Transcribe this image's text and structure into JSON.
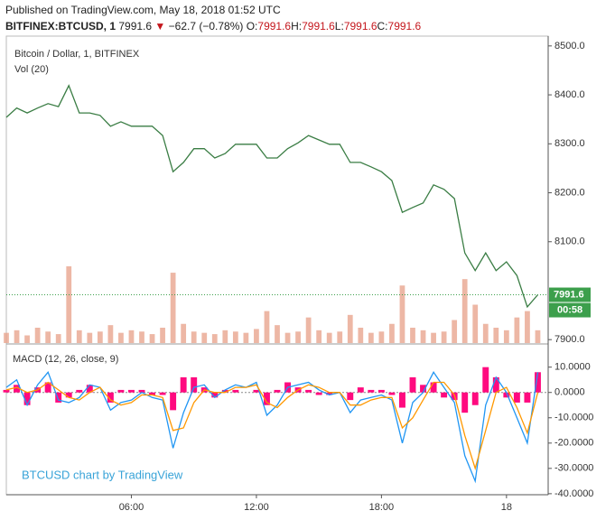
{
  "header": {
    "published": "Published on TradingView.com, May 18, 2018 01:52 UTC",
    "symbol": "BITFINEX:BTCUSD, 1",
    "last": "7991.6",
    "change": "−62.7 (−0.78%)",
    "ohlc": [
      {
        "label": "O:",
        "value": "7991.6"
      },
      {
        "label": "H:",
        "value": "7991.6"
      },
      {
        "label": "L:",
        "value": "7991.6"
      },
      {
        "label": "C:",
        "value": "7991.6"
      }
    ]
  },
  "watermark": "BTCUSD chart by TradingView",
  "chart_data": [
    {
      "type": "line",
      "title": "Bitcoin / Dollar, 1, BITFINEX",
      "subtitle": "Vol (20)",
      "countdown": "00:58",
      "x": [
        0,
        0.5,
        1,
        1.5,
        2,
        2.5,
        3,
        3.5,
        4,
        4.5,
        5,
        5.5,
        6,
        6.5,
        7,
        7.5,
        8,
        8.5,
        9,
        9.5,
        10,
        10.5,
        11,
        11.5,
        12,
        12.5,
        13,
        13.5,
        14,
        14.5,
        15,
        15.5,
        16,
        16.5,
        17,
        17.5,
        18,
        18.5,
        19,
        19.5,
        20,
        20.5,
        21,
        21.5,
        22,
        22.5,
        23,
        23.5,
        24,
        24.5,
        25,
        25.5
      ],
      "xlim": [
        0,
        26
      ],
      "ylim": [
        7893,
        8520
      ],
      "yticks": [
        {
          "value": 7900,
          "label": "7900.0"
        },
        {
          "value": 8100,
          "label": "8100.0"
        },
        {
          "value": 8200,
          "label": "8200.0"
        },
        {
          "value": 8300,
          "label": "8300.0"
        },
        {
          "value": 8400,
          "label": "8400.0"
        },
        {
          "value": 8500,
          "label": "8500.0"
        }
      ],
      "series": [
        {
          "name": "BTCUSD",
          "color": "#3a7d44",
          "values": [
            8354,
            8373,
            8363,
            8373,
            8382,
            8376,
            8419,
            8363,
            8363,
            8358,
            8336,
            8345,
            8336,
            8336,
            8336,
            8317,
            8243,
            8262,
            8290,
            8290,
            8271,
            8280,
            8299,
            8299,
            8299,
            8271,
            8271,
            8290,
            8302,
            8317,
            8308,
            8299,
            8299,
            8262,
            8262,
            8253,
            8243,
            8225,
            8160,
            8170,
            8179,
            8216,
            8207,
            8188,
            8077,
            8041,
            8077,
            8041,
            8059,
            8031,
            7967,
            7991.6
          ]
        },
        {
          "name": "Vol",
          "type": "volume",
          "color": "#e9a58f",
          "values": [
            8,
            10,
            6,
            12,
            9,
            7,
            60,
            10,
            8,
            9,
            14,
            8,
            10,
            9,
            7,
            12,
            55,
            15,
            9,
            8,
            7,
            10,
            9,
            8,
            11,
            25,
            14,
            8,
            9,
            20,
            10,
            8,
            9,
            22,
            12,
            8,
            9,
            15,
            45,
            12,
            10,
            8,
            9,
            18,
            50,
            30,
            15,
            12,
            10,
            20,
            25,
            10
          ]
        }
      ]
    },
    {
      "type": "line",
      "title": "MACD (12, 26, close, 9)",
      "x": [
        0,
        0.5,
        1,
        1.5,
        2,
        2.5,
        3,
        3.5,
        4,
        4.5,
        5,
        5.5,
        6,
        6.5,
        7,
        7.5,
        8,
        8.5,
        9,
        9.5,
        10,
        10.5,
        11,
        11.5,
        12,
        12.5,
        13,
        13.5,
        14,
        14.5,
        15,
        15.5,
        16,
        16.5,
        17,
        17.5,
        18,
        18.5,
        19,
        19.5,
        20,
        20.5,
        21,
        21.5,
        22,
        22.5,
        23,
        23.5,
        24,
        24.5,
        25,
        25.5
      ],
      "xlim": [
        0,
        26
      ],
      "xticks": [
        {
          "value": 6,
          "label": "06:00"
        },
        {
          "value": 12,
          "label": "12:00"
        },
        {
          "value": 18,
          "label": "18:00"
        },
        {
          "value": 24,
          "label": "18"
        }
      ],
      "ylim": [
        -40.4,
        18.8
      ],
      "yticks": [
        {
          "value": 10,
          "label": "10.0000"
        },
        {
          "value": 0,
          "label": "0.0000"
        },
        {
          "value": -10,
          "label": "-10.0000"
        },
        {
          "value": -20,
          "label": "-20.0000"
        },
        {
          "value": -30,
          "label": "-30.0000"
        },
        {
          "value": -40,
          "label": "-40.0000"
        }
      ],
      "series": [
        {
          "name": "Histogram",
          "type": "bar",
          "color": "#ff0a7f",
          "values": [
            1,
            3,
            -5,
            2,
            4,
            -4,
            -2,
            1,
            3,
            0,
            -4,
            1,
            1,
            1,
            -1,
            -1,
            -7,
            6,
            6,
            2,
            -2,
            1,
            1,
            0,
            1,
            -5,
            1,
            4,
            2,
            1,
            -1,
            -1,
            0,
            -3,
            2,
            1,
            1,
            -1,
            -6,
            6,
            3,
            4,
            -2,
            -3,
            -8,
            -5,
            10,
            6,
            -2,
            -4,
            -4,
            8
          ]
        },
        {
          "name": "MACD",
          "color": "#2196f3",
          "values": [
            2,
            5,
            -5,
            3,
            8,
            -3,
            -4,
            -2,
            3,
            2,
            -7,
            -4,
            -3,
            0,
            -2,
            -3,
            -22,
            -8,
            2,
            3,
            -2,
            1,
            3,
            2,
            4,
            -9,
            -5,
            2,
            3,
            4,
            1,
            -1,
            0,
            -8,
            -3,
            -2,
            -1,
            -3,
            -20,
            -4,
            0,
            8,
            2,
            -4,
            -25,
            -35,
            -5,
            6,
            0,
            -10,
            -20,
            8
          ]
        },
        {
          "name": "Signal",
          "color": "#ff9800",
          "values": [
            1,
            2,
            0,
            1,
            4,
            1,
            -2,
            -3,
            0,
            2,
            -3,
            -5,
            -4,
            -1,
            -1,
            -2,
            -15,
            -14,
            -4,
            1,
            0,
            0,
            2,
            2,
            3,
            -4,
            -6,
            -2,
            1,
            3,
            2,
            0,
            0,
            -5,
            -5,
            -3,
            -2,
            -2,
            -14,
            -10,
            -3,
            4,
            4,
            -1,
            -17,
            -30,
            -15,
            0,
            2,
            -6,
            -16,
            0
          ]
        }
      ]
    }
  ]
}
